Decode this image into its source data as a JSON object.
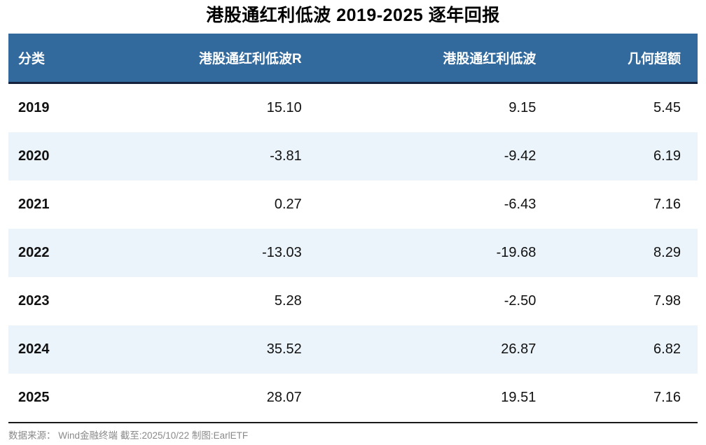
{
  "title": "港股通红利低波 2019-2025 逐年回报",
  "colors": {
    "header_bg": "#336A9E",
    "header_text": "#FFFFFF",
    "header_bottom_border": "#15223B",
    "alt_row_bg": "#ECF4FB",
    "body_text": "#111111",
    "footer_text": "#8A8A8A",
    "footer_top_border": "#1A1A1A"
  },
  "table": {
    "columns": [
      "分类",
      "港股通红利低波R",
      "港股通红利低波",
      "几何超额"
    ],
    "rows": [
      {
        "year": "2019",
        "full": "15.10",
        "price": "9.15",
        "excess": "5.45"
      },
      {
        "year": "2020",
        "full": "-3.81",
        "price": "-9.42",
        "excess": "6.19"
      },
      {
        "year": "2021",
        "full": "0.27",
        "price": "-6.43",
        "excess": "7.16"
      },
      {
        "year": "2022",
        "full": "-13.03",
        "price": "-19.68",
        "excess": "8.29"
      },
      {
        "year": "2023",
        "full": "5.28",
        "price": "-2.50",
        "excess": "7.98"
      },
      {
        "year": "2024",
        "full": "35.52",
        "price": "26.87",
        "excess": "6.82"
      },
      {
        "year": "2025",
        "full": "28.07",
        "price": "19.51",
        "excess": "7.16"
      }
    ]
  },
  "footer": {
    "source_note": "数据来源： Wind金融终端 截至:2025/10/22 制图:EarlETF"
  },
  "chart_data": {
    "type": "table",
    "title": "港股通红利低波 2019-2025 逐年回报",
    "columns": [
      "分类",
      "港股通红利低波R",
      "港股通红利低波",
      "几何超额"
    ],
    "categories": [
      "2019",
      "2020",
      "2021",
      "2022",
      "2023",
      "2024",
      "2025"
    ],
    "series": [
      {
        "name": "港股通红利低波R",
        "values": [
          15.1,
          -3.81,
          0.27,
          -13.03,
          5.28,
          35.52,
          28.07
        ]
      },
      {
        "name": "港股通红利低波",
        "values": [
          9.15,
          -9.42,
          -6.43,
          -19.68,
          -2.5,
          26.87,
          19.51
        ]
      },
      {
        "name": "几何超额",
        "values": [
          5.45,
          6.19,
          7.16,
          8.29,
          7.98,
          6.82,
          7.16
        ]
      }
    ],
    "source_note": "数据来源： Wind金融终端 截至:2025/10/22 制图:EarlETF",
    "legend_position": "none",
    "grid": false
  }
}
